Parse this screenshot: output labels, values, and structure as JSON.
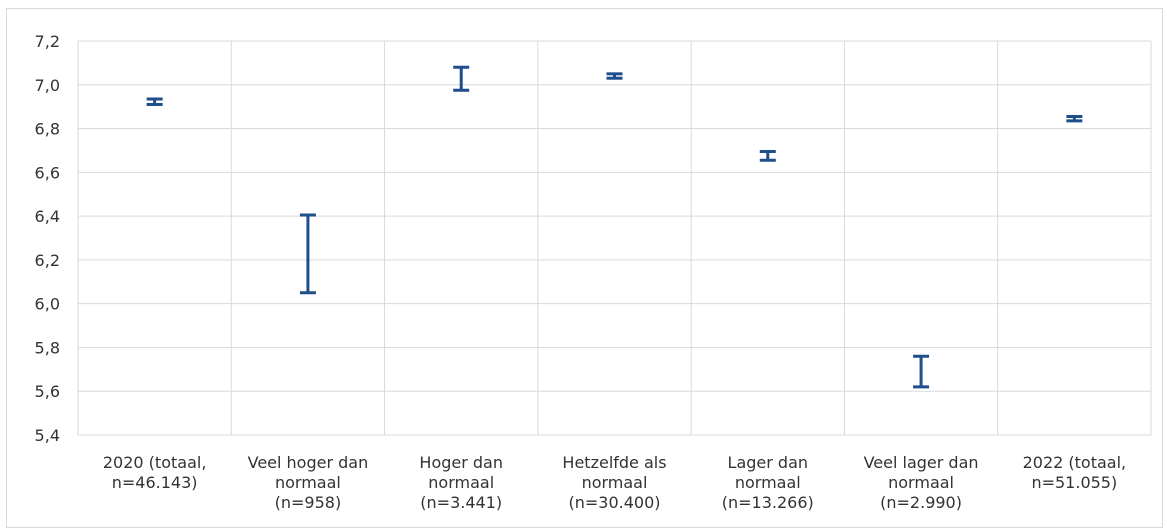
{
  "chart_data": {
    "type": "errorbar",
    "title": "",
    "xlabel": "",
    "ylabel": "",
    "ylim": [
      5.4,
      7.2
    ],
    "yticks": [
      "7,2",
      "7,0",
      "6,8",
      "6,6",
      "6,4",
      "6,2",
      "6,0",
      "5,8",
      "5,6",
      "5,4"
    ],
    "ytick_values": [
      7.2,
      7.0,
      6.8,
      6.6,
      6.4,
      6.2,
      6.0,
      5.8,
      5.6,
      5.4
    ],
    "grid": true,
    "color": "#1f4e8c",
    "categories": [
      [
        "2020 (totaal,",
        "n=46.143)"
      ],
      [
        "Veel hoger dan",
        "normaal",
        "(n=958)"
      ],
      [
        "Hoger dan",
        "normaal",
        "(n=3.441)"
      ],
      [
        "Hetzelfde als",
        "normaal",
        "(n=30.400)"
      ],
      [
        "Lager dan",
        "normaal",
        "(n=13.266)"
      ],
      [
        "Veel lager dan",
        "normaal",
        "(n=2.990)"
      ],
      [
        "2022     (totaal,",
        "n=51.055)"
      ]
    ],
    "intervals": [
      {
        "low": 6.91,
        "high": 6.935
      },
      {
        "low": 6.05,
        "high": 6.405
      },
      {
        "low": 6.975,
        "high": 7.08
      },
      {
        "low": 7.03,
        "high": 7.05
      },
      {
        "low": 6.655,
        "high": 6.695
      },
      {
        "low": 5.62,
        "high": 5.76
      },
      {
        "low": 6.835,
        "high": 6.855
      }
    ]
  }
}
